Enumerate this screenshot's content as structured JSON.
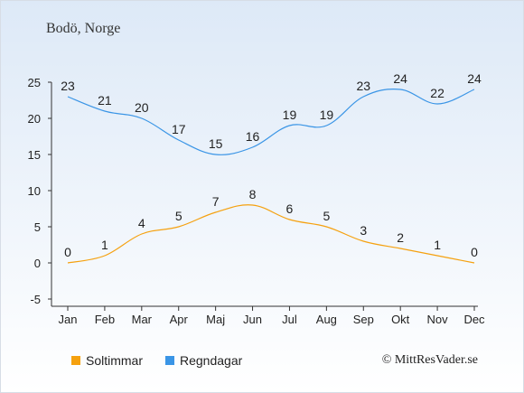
{
  "title": "Bodö, Norge",
  "copyright": "© MittResVader.se",
  "chart_data": {
    "type": "line",
    "categories": [
      "Jan",
      "Feb",
      "Mar",
      "Apr",
      "Maj",
      "Jun",
      "Jul",
      "Aug",
      "Sep",
      "Okt",
      "Nov",
      "Dec"
    ],
    "series": [
      {
        "name": "Soltimmar",
        "color": "#f5a10f",
        "values": [
          0,
          1,
          4,
          5,
          7,
          8,
          6,
          5,
          3,
          2,
          1,
          0
        ]
      },
      {
        "name": "Regndagar",
        "color": "#3a95e6",
        "values": [
          23,
          21,
          20,
          17,
          15,
          16,
          19,
          19,
          23,
          24,
          22,
          24
        ]
      }
    ],
    "ylim": [
      -5,
      25
    ],
    "yticks": [
      -5,
      0,
      5,
      10,
      15,
      20,
      25
    ],
    "grid": false,
    "legend": "bottom"
  }
}
